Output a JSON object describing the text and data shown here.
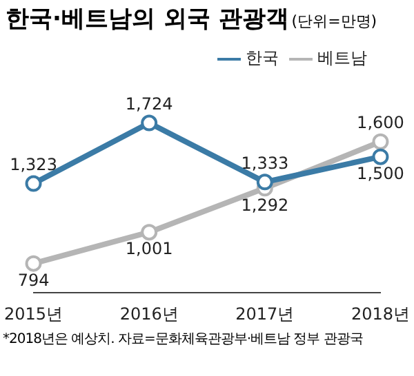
{
  "chart_data": {
    "type": "line",
    "title": "한국·베트남의 외국 관광객",
    "subtitle": "(단위=만명)",
    "categories": [
      "2015년",
      "2016년",
      "2017년",
      "2018년"
    ],
    "series": [
      {
        "name": "한국",
        "color": "#3b7ba6",
        "values": [
          1323,
          1724,
          1333,
          1500
        ],
        "value_labels": [
          "1,323",
          "1,724",
          "1,333",
          "1,500"
        ]
      },
      {
        "name": "베트남",
        "color": "#b5b5b5",
        "values": [
          794,
          1001,
          1292,
          1600
        ],
        "value_labels": [
          "794",
          "1,001",
          "1,292",
          "1,600"
        ]
      }
    ],
    "marker": "circle",
    "legend": "top right",
    "annotations": [
      "*2018년은 예상치. 자료=문화체육관광부·베트남 정부 관광국"
    ]
  }
}
